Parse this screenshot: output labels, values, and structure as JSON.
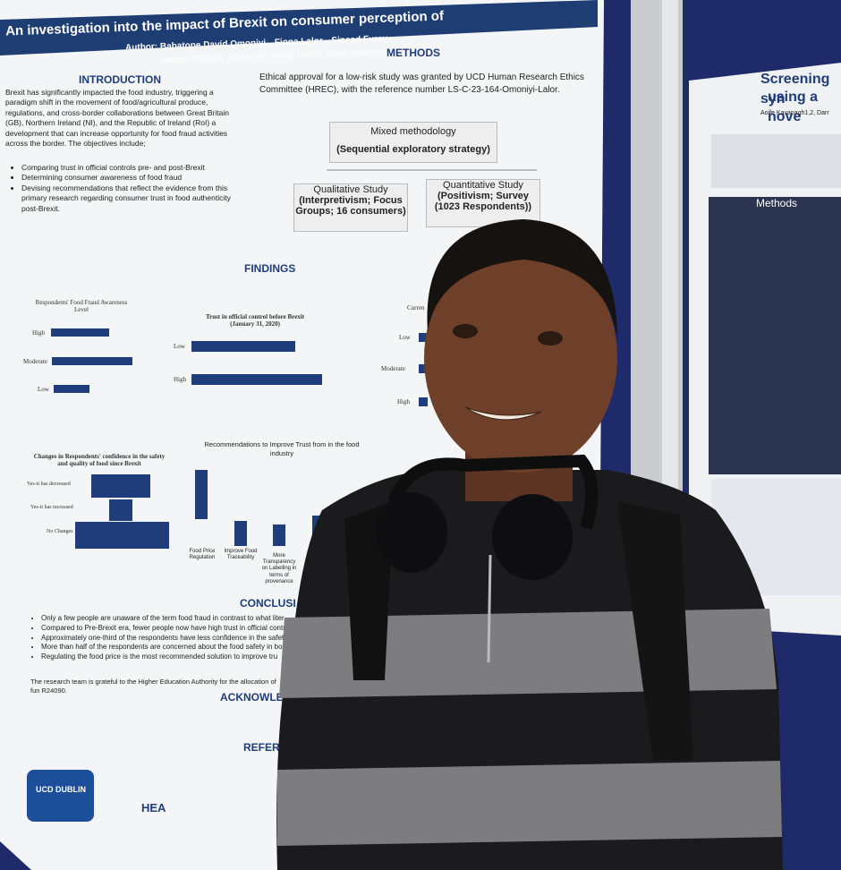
{
  "poster": {
    "title": "An investigation into the impact of Brexit on consumer perception of",
    "authors": "Author: Babatope David Omoniyi₁, Fiona Lalor₁, Sinead Furey₂",
    "affiliation": "Authors Affiliation: ₁University College Dublin, ₂Ulster University",
    "introduction": {
      "heading": "INTRODUCTION",
      "text": "Brexit has significantly impacted the food industry, triggering a paradigm shift in the movement of food/agricultural produce, regulations, and cross-border collaborations between Great Britain (GB), Northern Ireland (NI), and the Republic of Ireland (RoI) a development that can increase opportunity for food fraud activities across the border. The objectives include;",
      "bullets": [
        "Comparing trust in official controls pre- and post-Brexit",
        "Determining consumer awareness of food fraud",
        "Devising recommendations that reflect the evidence from this primary research regarding consumer trust in food authenticity post-Brexit."
      ]
    },
    "methods": {
      "heading": "METHODS",
      "ethics": "Ethical approval for a low-risk study was granted by UCD Human Research Ethics Committee (HREC), with the reference number LS-C-23-164-Omoniyi-Lalor.",
      "mixed": "Mixed methodology",
      "strategy": "(Sequential exploratory strategy)",
      "qualitative": {
        "title": "Qualitative Study",
        "detail": "(Interpretivism; Focus Groups; 16 consumers)"
      },
      "quantitative": {
        "title": "Quantitative Study",
        "detail": "(Positivism; Survey (1023 Respondents))"
      }
    },
    "findings": {
      "heading": "FINDINGS",
      "charts": [
        {
          "title": "Respondents' Food Fraud Awareness Level",
          "labels": [
            "High",
            "Moderate",
            "Low"
          ]
        },
        {
          "title": "Trust in official control before Brexit (January 31, 2020)",
          "labels": [
            "Low",
            "High"
          ]
        },
        {
          "title": "Curren",
          "labels": [
            "Low",
            "Moderate",
            "High"
          ]
        },
        {
          "title": "Changes in Respondents' confidence in the safety and quality of food since Brexit",
          "labels": [
            "Yes-it has decreased",
            "Yes-it has increased",
            "No Changes"
          ]
        },
        {
          "title": "Recommendations to Improve Trust from in the food industry",
          "labels": [
            "Food Price Regulation",
            "Improve Food Traceability",
            "More Transparency on Labelling in terms of provenance"
          ]
        }
      ]
    },
    "conclusion": {
      "heading": "CONCLUSI",
      "bullets": [
        "Only a few people are unaware of the term food fraud in contrast to what liter",
        "Compared to Pre-Brexit era, fewer people now have high trust in official contr",
        "Approximately one-third of the respondents have less confidence in the safety",
        "More than half of the respondents are concerned about the food safety in bo",
        "Regulating the food price is the most recommended solution to improve tru"
      ]
    },
    "acknowledgement": {
      "heading": "ACKNOWLED",
      "text": "The research team is grateful to the Higher Education Authority for the allocation of fun R24090."
    },
    "references": {
      "heading": "REFER"
    },
    "logos": [
      "UCD DUBLIN",
      "HEA"
    ]
  },
  "neighbor_poster": {
    "title_lines": [
      "Screening syn",
      "using a nove"
    ],
    "authors": "Aoife Kavanagh1,2, Darr",
    "section": "Methods"
  }
}
